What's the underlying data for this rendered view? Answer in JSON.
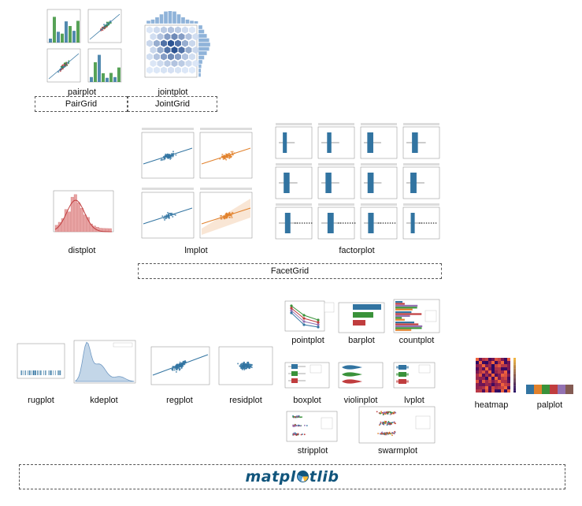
{
  "captions": {
    "pairplot": "pairplot",
    "jointplot": "jointplot",
    "distplot": "distplot",
    "lmplot": "lmplot",
    "factorplot": "factorplot",
    "pointplot": "pointplot",
    "barplot": "barplot",
    "countplot": "countplot",
    "rugplot": "rugplot",
    "kdeplot": "kdeplot",
    "regplot": "regplot",
    "residplot": "residplot",
    "boxplot": "boxplot",
    "violinplot": "violinplot",
    "lvplot": "lvplot",
    "heatmap": "heatmap",
    "palplot": "palplot",
    "stripplot": "stripplot",
    "swarmplot": "swarmplot"
  },
  "groups": {
    "pairgrid": "PairGrid",
    "jointgrid": "JointGrid",
    "facetgrid": "FacetGrid"
  },
  "logo": {
    "text_before": "matpl",
    "text_after": "tlib"
  },
  "colors": {
    "blue": "#3274a1",
    "orange": "#e1812c",
    "green": "#3a923a",
    "red": "#c03d3e",
    "purple": "#9372b2",
    "brown": "#845b53",
    "matplotlib_blue": "#11557c"
  },
  "palette": [
    "#3274a1",
    "#e1812c",
    "#3a923a",
    "#c03d3e",
    "#9372b2",
    "#845b53",
    "#d684bd",
    "#7f7f7f",
    "#a9aa35",
    "#2eabb8"
  ]
}
